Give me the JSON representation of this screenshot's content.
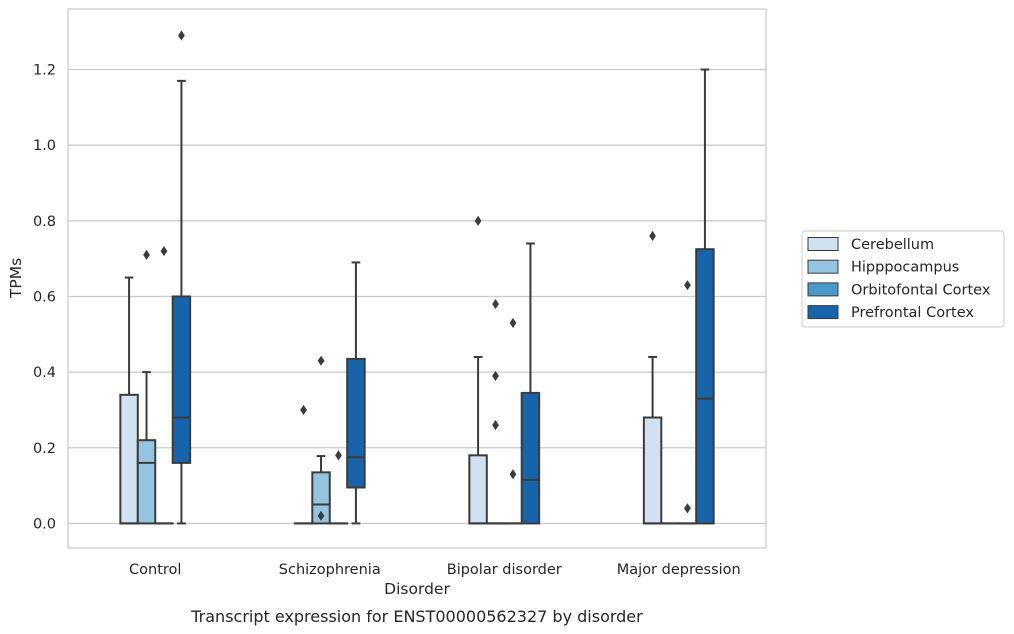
{
  "chart_data": {
    "type": "box",
    "caption": "Transcript expression for ENST00000562327 by disorder",
    "xlabel": "Disorder",
    "ylabel": "TPMs",
    "ylim": [
      -0.065,
      1.36
    ],
    "yticks": [
      0.0,
      0.2,
      0.4,
      0.6,
      0.8,
      1.0,
      1.2
    ],
    "ytick_labels": [
      "0.0",
      "0.2",
      "0.4",
      "0.6",
      "0.8",
      "1.0",
      "1.2"
    ],
    "grid": "horizontal",
    "legend_position": "right",
    "categories": [
      "Control",
      "Schizophrenia",
      "Bipolar disorder",
      "Major depression"
    ],
    "series": [
      {
        "name": "Cerebellum",
        "color": "#d0e1f2",
        "boxes": [
          {
            "q1": 0.0,
            "median": 0.0,
            "q3": 0.34,
            "whisker_low": 0.0,
            "whisker_high": 0.65,
            "outliers": []
          },
          {
            "q1": 0.0,
            "median": 0.0,
            "q3": 0.0,
            "whisker_low": 0.0,
            "whisker_high": 0.0,
            "outliers": [
              0.3
            ]
          },
          {
            "q1": 0.0,
            "median": 0.0,
            "q3": 0.18,
            "whisker_low": 0.0,
            "whisker_high": 0.44,
            "outliers": [
              0.8
            ]
          },
          {
            "q1": 0.0,
            "median": 0.0,
            "q3": 0.28,
            "whisker_low": 0.0,
            "whisker_high": 0.44,
            "outliers": [
              0.76
            ]
          }
        ]
      },
      {
        "name": "Hipppocampus",
        "color": "#94c4df",
        "boxes": [
          {
            "q1": 0.0,
            "median": 0.16,
            "q3": 0.22,
            "whisker_low": 0.0,
            "whisker_high": 0.4,
            "outliers": [
              0.71
            ]
          },
          {
            "q1": 0.0,
            "median": 0.05,
            "q3": 0.135,
            "whisker_low": 0.0,
            "whisker_high": 0.178,
            "outliers": [
              0.02,
              0.43
            ]
          },
          {
            "q1": 0.0,
            "median": 0.0,
            "q3": 0.0,
            "whisker_low": 0.0,
            "whisker_high": 0.0,
            "outliers": [
              0.26,
              0.39,
              0.58
            ]
          },
          {
            "q1": 0.0,
            "median": 0.0,
            "q3": 0.0,
            "whisker_low": 0.0,
            "whisker_high": 0.0,
            "outliers": []
          }
        ]
      },
      {
        "name": "Orbitofontal Cortex",
        "color": "#4a98c9",
        "boxes": [
          {
            "q1": 0.0,
            "median": 0.0,
            "q3": 0.0,
            "whisker_low": 0.0,
            "whisker_high": 0.0,
            "outliers": [
              0.72
            ]
          },
          {
            "q1": 0.0,
            "median": 0.0,
            "q3": 0.0,
            "whisker_low": 0.0,
            "whisker_high": 0.0,
            "outliers": [
              0.18
            ]
          },
          {
            "q1": 0.0,
            "median": 0.0,
            "q3": 0.0,
            "whisker_low": 0.0,
            "whisker_high": 0.0,
            "outliers": [
              0.13,
              0.53
            ]
          },
          {
            "q1": 0.0,
            "median": 0.0,
            "q3": 0.0,
            "whisker_low": 0.0,
            "whisker_high": 0.0,
            "outliers": [
              0.04,
              0.63
            ]
          }
        ]
      },
      {
        "name": "Prefrontal Cortex",
        "color": "#1764ab",
        "boxes": [
          {
            "q1": 0.16,
            "median": 0.28,
            "q3": 0.6,
            "whisker_low": 0.0,
            "whisker_high": 1.17,
            "outliers": [
              1.29
            ]
          },
          {
            "q1": 0.095,
            "median": 0.175,
            "q3": 0.435,
            "whisker_low": 0.0,
            "whisker_high": 0.69,
            "outliers": []
          },
          {
            "q1": 0.0,
            "median": 0.115,
            "q3": 0.345,
            "whisker_low": 0.0,
            "whisker_high": 0.74,
            "outliers": []
          },
          {
            "q1": 0.0,
            "median": 0.33,
            "q3": 0.725,
            "whisker_low": 0.0,
            "whisker_high": 1.2,
            "outliers": []
          }
        ]
      }
    ]
  }
}
